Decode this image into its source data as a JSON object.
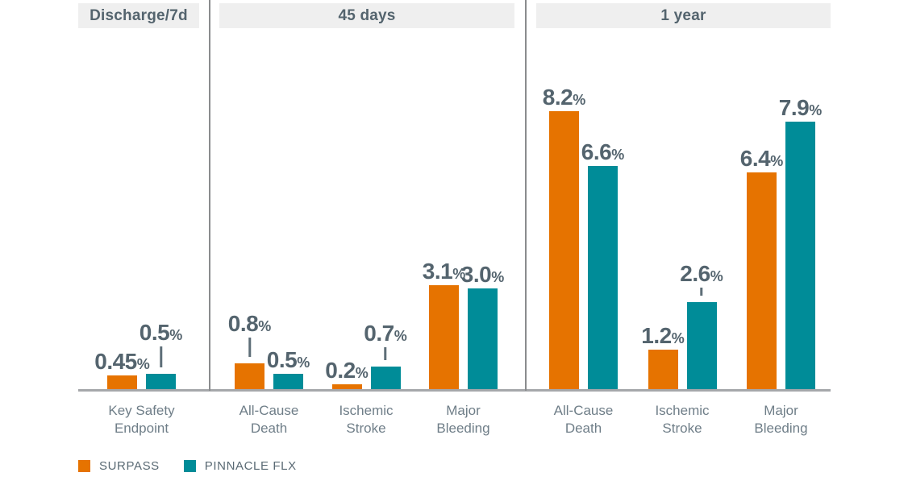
{
  "colors": {
    "surpass": "#E67300",
    "pinnacle": "#008C98",
    "header_bg": "#EFEFEF",
    "header_text": "#54646E",
    "value_text": "#54646E",
    "category_text": "#6F7E88",
    "legend_text": "#5A6A74",
    "divider": "#8A8C8E",
    "axis": "#A5A7AA",
    "leader": "#5E6E78"
  },
  "chart_data": {
    "type": "bar",
    "unit": "%",
    "ylim": [
      0,
      10.7
    ],
    "gridlines": false,
    "legend_position": "bottom-left",
    "series_names": [
      "SURPASS",
      "PINNACLE FLX"
    ],
    "legend": [
      {
        "name": "SURPASS",
        "color": "#E67300"
      },
      {
        "name": "PINNACLE FLX",
        "color": "#008C98"
      }
    ],
    "sections": [
      {
        "header": "Discharge/7d",
        "groups": [
          {
            "category": "Key Safety Endpoint",
            "values": [
              0.45,
              0.5
            ],
            "labels": [
              "0.45%",
              "0.5%"
            ],
            "leaders": [
              0,
              26
            ]
          }
        ]
      },
      {
        "header": "45 days",
        "groups": [
          {
            "category": "All-Cause Death",
            "values": [
              0.8,
              0.5
            ],
            "labels": [
              "0.8%",
              "0.5%"
            ],
            "leaders": [
              24,
              0
            ]
          },
          {
            "category": "Ischemic Stroke",
            "values": [
              0.2,
              0.7
            ],
            "labels": [
              "0.2%",
              "0.7%"
            ],
            "leaders": [
              0,
              16
            ]
          },
          {
            "category": "Major Bleeding",
            "values": [
              3.1,
              3.0
            ],
            "labels": [
              "3.1%",
              "3.0%"
            ],
            "leaders": [
              0,
              0
            ]
          }
        ]
      },
      {
        "header": "1 year",
        "groups": [
          {
            "category": "All-Cause Death",
            "values": [
              8.2,
              6.6
            ],
            "labels": [
              "8.2%",
              "6.6%"
            ],
            "leaders": [
              0,
              0
            ]
          },
          {
            "category": "Ischemic Stroke",
            "values": [
              1.2,
              2.6
            ],
            "labels": [
              "1.2%",
              "2.6%"
            ],
            "leaders": [
              0,
              10
            ]
          },
          {
            "category": "Major Bleeding",
            "values": [
              6.4,
              7.9
            ],
            "labels": [
              "6.4%",
              "7.9%"
            ],
            "leaders": [
              0,
              0
            ]
          }
        ]
      }
    ]
  }
}
